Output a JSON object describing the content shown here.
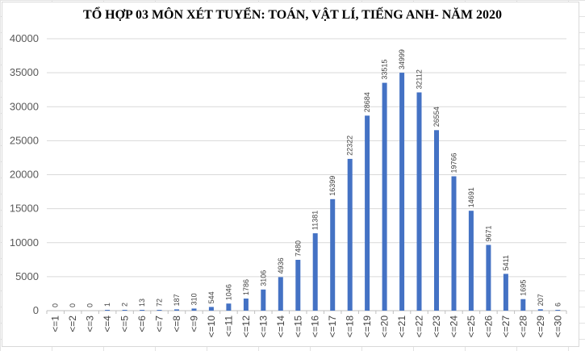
{
  "chart_data": {
    "type": "bar",
    "title": "TỔ HỢP 03 MÔN XÉT TUYỂN: TOÁN, VẬT LÍ, TIẾNG ANH- NĂM 2020",
    "xlabel": "",
    "ylabel": "",
    "ylim": [
      0,
      40000
    ],
    "y_ticks": [
      0,
      5000,
      10000,
      15000,
      20000,
      25000,
      30000,
      35000,
      40000
    ],
    "grid": true,
    "legend": "none",
    "bar_color": "#4472C4",
    "categories": [
      "<=1",
      "<=2",
      "<=3",
      "<=4",
      "<=5",
      "<=6",
      "<=7",
      "<=8",
      "<=9",
      "<=10",
      "<=11",
      "<=12",
      "<=13",
      "<=14",
      "<=15",
      "<=16",
      "<=17",
      "<=18",
      "<=19",
      "<=20",
      "<=21",
      "<=22",
      "<=23",
      "<=24",
      "<=25",
      "<=26",
      "<=27",
      "<=28",
      "<=29",
      "<=30"
    ],
    "values": [
      0,
      0,
      0,
      1,
      2,
      13,
      72,
      187,
      310,
      544,
      1046,
      1786,
      3106,
      4936,
      7480,
      11381,
      16399,
      22322,
      28684,
      33515,
      34999,
      32112,
      26554,
      19766,
      14691,
      9671,
      5411,
      1695,
      207,
      6
    ]
  }
}
